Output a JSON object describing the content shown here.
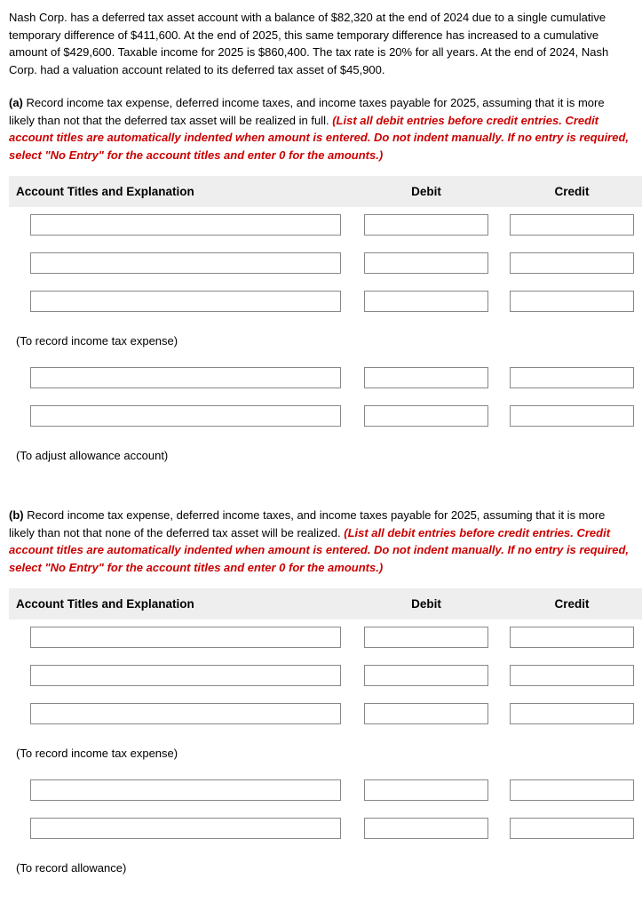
{
  "problem": {
    "text": "Nash Corp. has a deferred tax asset account with a balance of $82,320 at the end of 2024 due to a single cumulative temporary difference of $411,600. At the end of 2025, this same temporary difference has increased to a cumulative amount of $429,600. Taxable income for 2025 is $860,400. The tax rate is 20% for all years. At the end of 2024, Nash Corp. had a valuation account related to its deferred tax asset of $45,900."
  },
  "part_a": {
    "label": "(a)",
    "intro": "Record income tax expense, deferred income taxes, and income taxes payable for 2025, assuming that it is more likely than not that the deferred tax asset will be realized in full.",
    "instruction": "(List all debit entries before credit entries. Credit account titles are automatically indented when amount is entered. Do not indent manually. If no entry is required, select \"No Entry\" for the account titles and enter 0 for the amounts.)",
    "headers": {
      "acct": "Account Titles and Explanation",
      "debit": "Debit",
      "credit": "Credit"
    },
    "caption1": "(To record income tax expense)",
    "caption2": "(To adjust allowance account)"
  },
  "part_b": {
    "label": "(b)",
    "intro": "Record income tax expense, deferred income taxes, and income taxes payable for 2025, assuming that it is more likely than not that none of the deferred tax asset will be realized.",
    "instruction": "(List all debit entries before credit entries. Credit account titles are automatically indented when amount is entered. Do not indent manually. If no entry is required, select \"No Entry\" for the account titles and enter 0 for the amounts.)",
    "headers": {
      "acct": "Account Titles and Explanation",
      "debit": "Debit",
      "credit": "Credit"
    },
    "caption1": "(To record income tax expense)",
    "caption2": "(To record allowance)"
  }
}
